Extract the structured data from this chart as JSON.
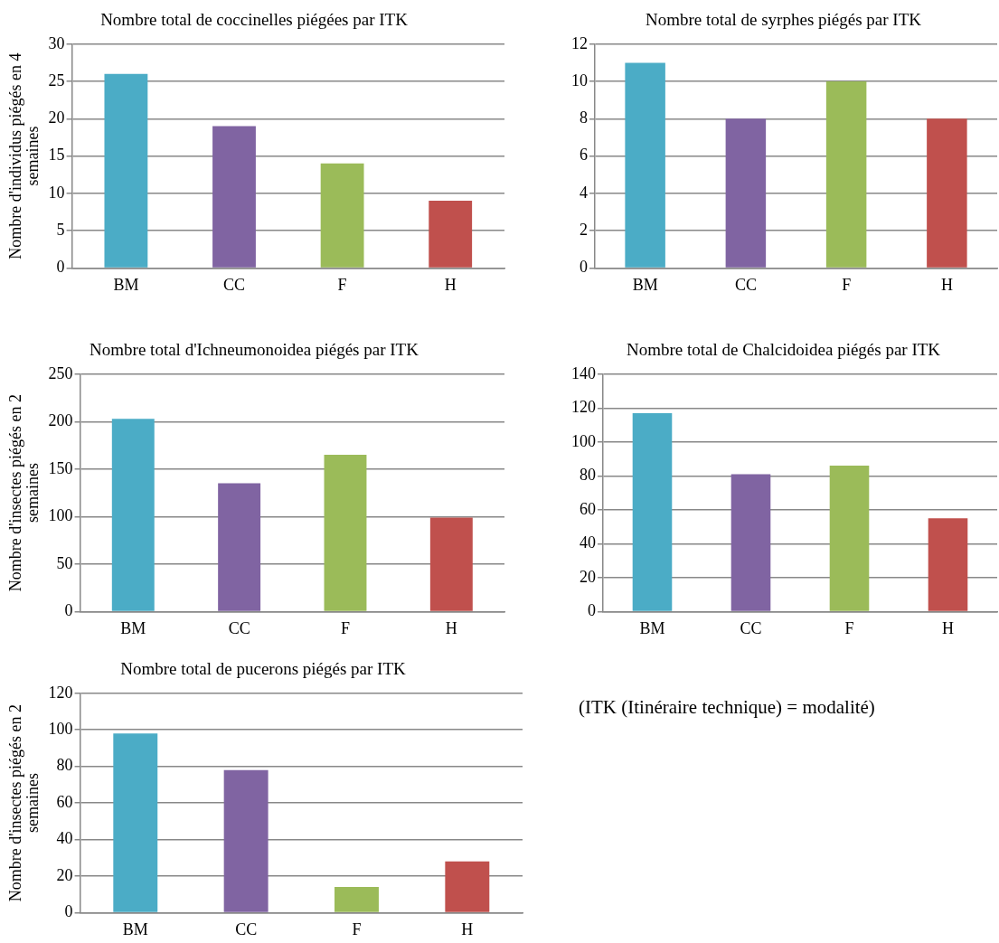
{
  "chart_data": [
    {
      "type": "bar",
      "title": "Nombre total de coccinelles piégées par ITK",
      "ylabel": "Nombre d'individus piégés en 4 semaines",
      "categories": [
        "BM",
        "CC",
        "F",
        "H"
      ],
      "values": [
        26,
        19,
        14,
        9
      ],
      "colors": [
        "#4bacc6",
        "#8064a2",
        "#9bbb59",
        "#c0504d"
      ],
      "ylim": [
        0,
        30
      ],
      "yticks": [
        0,
        5,
        10,
        15,
        20,
        25,
        30
      ],
      "grid": "y"
    },
    {
      "type": "bar",
      "title": "Nombre total de syrphes piégés par ITK",
      "categories": [
        "BM",
        "CC",
        "F",
        "H"
      ],
      "values": [
        11,
        8,
        10,
        8
      ],
      "colors": [
        "#4bacc6",
        "#8064a2",
        "#9bbb59",
        "#c0504d"
      ],
      "ylim": [
        0,
        12
      ],
      "yticks": [
        0,
        2,
        4,
        6,
        8,
        10,
        12
      ],
      "grid": "y"
    },
    {
      "type": "bar",
      "title": "Nombre total d'Ichneumonoidea piégés par ITK",
      "ylabel": "Nombre d'insectes piégés en 2 semaines",
      "categories": [
        "BM",
        "CC",
        "F",
        "H"
      ],
      "values": [
        203,
        135,
        165,
        99
      ],
      "colors": [
        "#4bacc6",
        "#8064a2",
        "#9bbb59",
        "#c0504d"
      ],
      "ylim": [
        0,
        250
      ],
      "yticks": [
        0,
        50,
        100,
        150,
        200,
        250
      ],
      "grid": "y"
    },
    {
      "type": "bar",
      "title": "Nombre total de Chalcidoidea piégés par ITK",
      "categories": [
        "BM",
        "CC",
        "F",
        "H"
      ],
      "values": [
        117,
        81,
        86,
        55
      ],
      "colors": [
        "#4bacc6",
        "#8064a2",
        "#9bbb59",
        "#c0504d"
      ],
      "ylim": [
        0,
        140
      ],
      "yticks": [
        0,
        20,
        40,
        60,
        80,
        100,
        120,
        140
      ],
      "grid": "y"
    },
    {
      "type": "bar",
      "title": "Nombre total de pucerons piégés par ITK",
      "ylabel": "Nombre d'insectes piégés en 2 semaines",
      "categories": [
        "BM",
        "CC",
        "F",
        "H"
      ],
      "values": [
        98,
        78,
        14,
        28
      ],
      "colors": [
        "#4bacc6",
        "#8064a2",
        "#9bbb59",
        "#c0504d"
      ],
      "ylim": [
        0,
        120
      ],
      "yticks": [
        0,
        20,
        40,
        60,
        80,
        100,
        120
      ],
      "grid": "y"
    },
    {
      "type": "other",
      "annotations": [
        "(ITK (Itinéraire technique) = modalité)"
      ]
    }
  ]
}
